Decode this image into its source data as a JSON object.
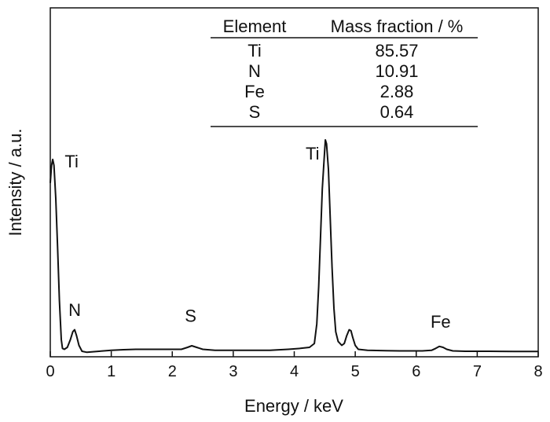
{
  "chart_data": {
    "type": "line",
    "title": "",
    "xlabel": "Energy / keV",
    "ylabel": "Intensity / a.u.",
    "xlim": [
      0,
      8
    ],
    "ylim": [
      0,
      100
    ],
    "xticks": [
      "0",
      "1",
      "2",
      "3",
      "4",
      "5",
      "6",
      "7",
      "8"
    ],
    "grid": false,
    "legend": "none",
    "line_color": "#111111",
    "series": [
      {
        "values_xy": [
          [
            0.0,
            88.0
          ],
          [
            0.02,
            97.0
          ],
          [
            0.04,
            100.0
          ],
          [
            0.06,
            97.0
          ],
          [
            0.09,
            80.0
          ],
          [
            0.12,
            55.0
          ],
          [
            0.15,
            28.0
          ],
          [
            0.18,
            8.0
          ],
          [
            0.2,
            3.5
          ],
          [
            0.23,
            3.0
          ],
          [
            0.28,
            4.0
          ],
          [
            0.33,
            8.0
          ],
          [
            0.37,
            12.0
          ],
          [
            0.4,
            13.0
          ],
          [
            0.43,
            10.0
          ],
          [
            0.47,
            5.0
          ],
          [
            0.52,
            2.0
          ],
          [
            0.6,
            1.5
          ],
          [
            0.8,
            2.0
          ],
          [
            1.0,
            2.5
          ],
          [
            1.2,
            2.8
          ],
          [
            1.4,
            3.0
          ],
          [
            1.6,
            3.0
          ],
          [
            1.8,
            3.0
          ],
          [
            2.0,
            3.0
          ],
          [
            2.15,
            3.0
          ],
          [
            2.25,
            4.0
          ],
          [
            2.32,
            4.8
          ],
          [
            2.4,
            4.0
          ],
          [
            2.5,
            3.0
          ],
          [
            2.7,
            2.5
          ],
          [
            3.0,
            2.5
          ],
          [
            3.3,
            2.5
          ],
          [
            3.6,
            2.5
          ],
          [
            3.9,
            3.0
          ],
          [
            4.1,
            3.5
          ],
          [
            4.25,
            4.0
          ],
          [
            4.33,
            6.0
          ],
          [
            4.37,
            16.0
          ],
          [
            4.4,
            35.0
          ],
          [
            4.43,
            60.0
          ],
          [
            4.46,
            85.0
          ],
          [
            4.49,
            100.0
          ],
          [
            4.51,
            110.0
          ],
          [
            4.53,
            108.0
          ],
          [
            4.56,
            95.0
          ],
          [
            4.59,
            70.0
          ],
          [
            4.62,
            45.0
          ],
          [
            4.65,
            24.0
          ],
          [
            4.68,
            12.0
          ],
          [
            4.72,
            7.0
          ],
          [
            4.78,
            5.0
          ],
          [
            4.82,
            6.0
          ],
          [
            4.86,
            10.0
          ],
          [
            4.9,
            13.0
          ],
          [
            4.93,
            12.5
          ],
          [
            4.96,
            9.0
          ],
          [
            5.0,
            5.0
          ],
          [
            5.05,
            3.0
          ],
          [
            5.2,
            2.5
          ],
          [
            5.5,
            2.3
          ],
          [
            5.8,
            2.2
          ],
          [
            6.1,
            2.2
          ],
          [
            6.25,
            2.5
          ],
          [
            6.32,
            3.5
          ],
          [
            6.38,
            4.5
          ],
          [
            6.44,
            4.0
          ],
          [
            6.5,
            3.0
          ],
          [
            6.6,
            2.2
          ],
          [
            6.8,
            2.0
          ],
          [
            7.2,
            2.0
          ],
          [
            7.6,
            1.9
          ],
          [
            8.0,
            1.9
          ]
        ]
      }
    ],
    "annotations": [
      {
        "text": "Ti",
        "x": 0.35,
        "y": 96
      },
      {
        "text": "N",
        "x": 0.4,
        "y": 20
      },
      {
        "text": "S",
        "x": 2.3,
        "y": 17
      },
      {
        "text": "Ti",
        "x": 4.3,
        "y": 100
      },
      {
        "text": "Fe",
        "x": 6.4,
        "y": 14
      }
    ],
    "inset_table": {
      "headers": [
        "Element",
        "Mass fraction / %"
      ],
      "rows": [
        [
          "Ti",
          "85.57"
        ],
        [
          "N",
          "10.91"
        ],
        [
          "Fe",
          "2.88"
        ],
        [
          "S",
          "0.64"
        ]
      ]
    }
  }
}
